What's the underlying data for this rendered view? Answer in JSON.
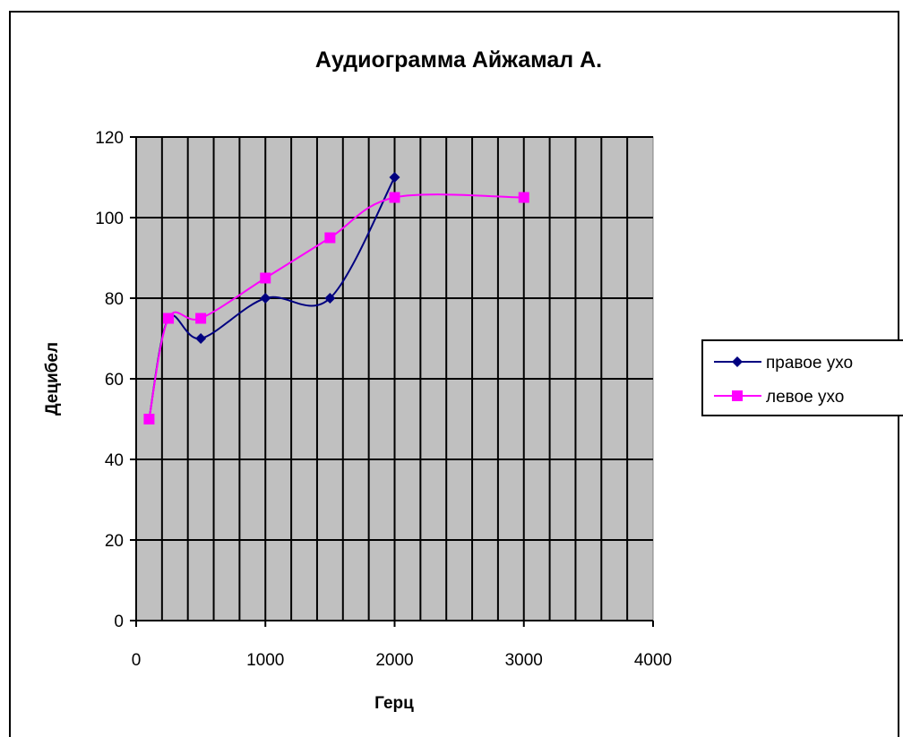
{
  "chart_data": {
    "type": "line",
    "title": "Аудиограмма Айжамал А.",
    "xlabel": "Герц",
    "ylabel": "Децибел",
    "xlim": [
      0,
      4000
    ],
    "ylim": [
      0,
      120
    ],
    "x_ticks": [
      "0",
      "1000",
      "2000",
      "3000",
      "4000"
    ],
    "y_ticks": [
      "0",
      "20",
      "40",
      "60",
      "80",
      "100",
      "120"
    ],
    "grid": true,
    "plot_background": "#c0c0c0",
    "legend_position": "right",
    "series": [
      {
        "name": "правое ухо",
        "color": "#000080",
        "marker": "diamond",
        "smooth": true,
        "x": [
          100,
          250,
          500,
          1000,
          1500,
          2000
        ],
        "y": [
          50,
          75,
          70,
          80,
          80,
          110
        ]
      },
      {
        "name": "левое ухо",
        "color": "#ff00ff",
        "marker": "square",
        "smooth": true,
        "x": [
          100,
          250,
          500,
          1000,
          1500,
          2000,
          3000
        ],
        "y": [
          50,
          75,
          75,
          85,
          95,
          105,
          105
        ]
      }
    ]
  }
}
